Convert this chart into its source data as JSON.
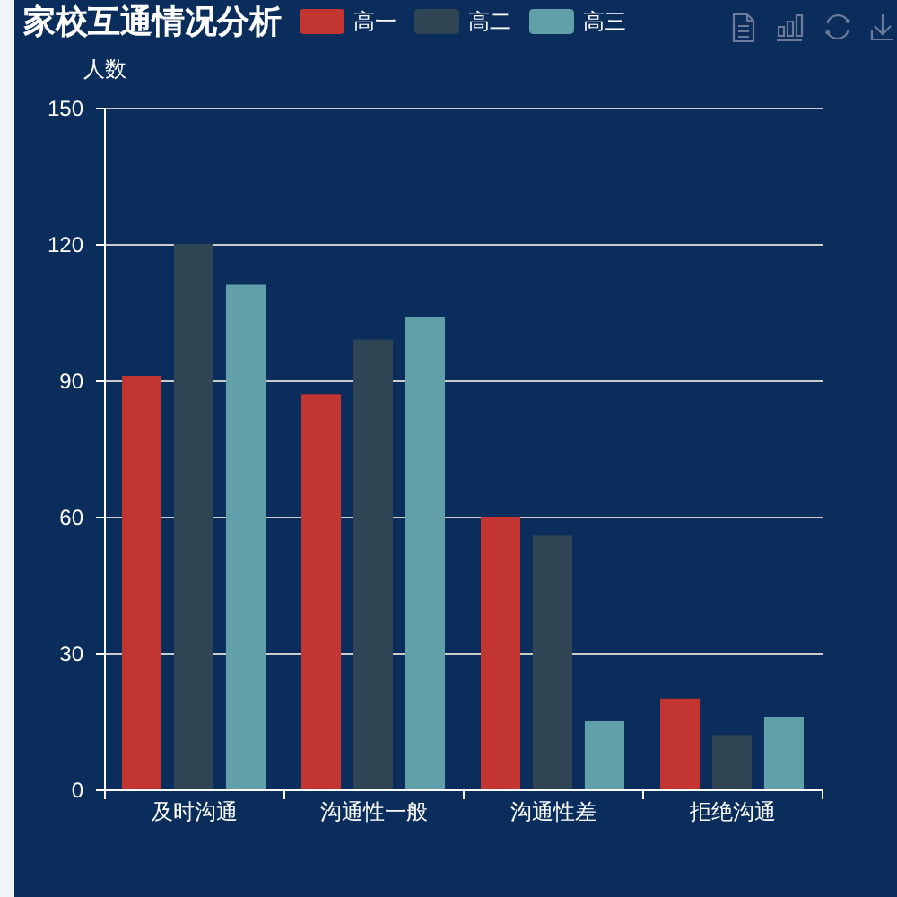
{
  "chart_data": {
    "type": "bar",
    "title": "家校互通情况分析",
    "ylabel": "人数",
    "categories": [
      "及时沟通",
      "沟通性一般",
      "沟通性差",
      "拒绝沟通"
    ],
    "series": [
      {
        "name": "高一",
        "color": "#c23531",
        "values": [
          91,
          87,
          60,
          20
        ]
      },
      {
        "name": "高二",
        "color": "#2f4554",
        "values": [
          120,
          99,
          56,
          12
        ]
      },
      {
        "name": "高三",
        "color": "#61a0a8",
        "values": [
          111,
          104,
          15,
          16
        ]
      }
    ],
    "ylim": [
      0,
      150
    ],
    "yticks": [
      0,
      30,
      60,
      90,
      120,
      150
    ],
    "grid": "y",
    "legend": "top"
  }
}
